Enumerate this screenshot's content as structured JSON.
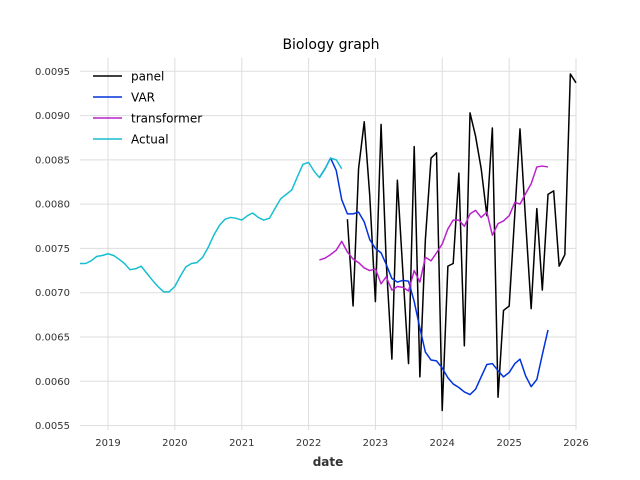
{
  "chart_data": {
    "type": "line",
    "title": "Biology graph",
    "xlabel": "date",
    "ylabel": "",
    "xlim": [
      "2018-08-01",
      "2026-01-01"
    ],
    "ylim": [
      0.00545,
      0.00965
    ],
    "x_ticks": [
      "2019",
      "2020",
      "2021",
      "2022",
      "2023",
      "2024",
      "2025",
      "2026"
    ],
    "y_ticks": [
      "0.0055",
      "0.0060",
      "0.0065",
      "0.0070",
      "0.0075",
      "0.0080",
      "0.0085",
      "0.0090",
      "0.0095"
    ],
    "grid": true,
    "legend_position": "top-left",
    "series": [
      {
        "name": "panel",
        "color": "#000000",
        "points": [
          [
            "2022-08-01",
            0.00783
          ],
          [
            "2022-09-01",
            0.00685
          ],
          [
            "2022-10-01",
            0.0084
          ],
          [
            "2022-11-01",
            0.00893
          ],
          [
            "2022-12-01",
            0.0081
          ],
          [
            "2023-01-01",
            0.0069
          ],
          [
            "2023-02-01",
            0.0089
          ],
          [
            "2023-03-01",
            0.00735
          ],
          [
            "2023-04-01",
            0.00625
          ],
          [
            "2023-05-01",
            0.00827
          ],
          [
            "2023-06-01",
            0.0072
          ],
          [
            "2023-07-01",
            0.0062
          ],
          [
            "2023-08-01",
            0.00865
          ],
          [
            "2023-09-01",
            0.00605
          ],
          [
            "2023-10-01",
            0.0076
          ],
          [
            "2023-11-01",
            0.00852
          ],
          [
            "2023-12-01",
            0.00858
          ],
          [
            "2024-01-01",
            0.00567
          ],
          [
            "2024-02-01",
            0.0073
          ],
          [
            "2024-03-01",
            0.00733
          ],
          [
            "2024-04-01",
            0.00835
          ],
          [
            "2024-05-01",
            0.0064
          ],
          [
            "2024-06-01",
            0.00903
          ],
          [
            "2024-07-01",
            0.00877
          ],
          [
            "2024-08-01",
            0.0084
          ],
          [
            "2024-09-01",
            0.00787
          ],
          [
            "2024-10-01",
            0.00886
          ],
          [
            "2024-11-01",
            0.00582
          ],
          [
            "2024-12-01",
            0.0068
          ],
          [
            "2025-01-01",
            0.00685
          ],
          [
            "2025-02-01",
            0.0079
          ],
          [
            "2025-03-01",
            0.00885
          ],
          [
            "2025-04-01",
            0.0078
          ],
          [
            "2025-05-01",
            0.00682
          ],
          [
            "2025-06-01",
            0.00795
          ],
          [
            "2025-07-01",
            0.00703
          ],
          [
            "2025-08-01",
            0.00811
          ],
          [
            "2025-09-01",
            0.00815
          ],
          [
            "2025-10-01",
            0.0073
          ],
          [
            "2025-11-01",
            0.00743
          ],
          [
            "2025-12-01",
            0.00947
          ],
          [
            "2026-01-01",
            0.00937
          ]
        ]
      },
      {
        "name": "VAR",
        "color": "#0033dd",
        "points": [
          [
            "2022-03-01",
            0.0083
          ],
          [
            "2022-04-01",
            0.0084
          ],
          [
            "2022-05-01",
            0.00852
          ],
          [
            "2022-06-01",
            0.00838
          ],
          [
            "2022-07-01",
            0.00805
          ],
          [
            "2022-08-01",
            0.00789
          ],
          [
            "2022-09-01",
            0.00789
          ],
          [
            "2022-10-01",
            0.00791
          ],
          [
            "2022-11-01",
            0.0078
          ],
          [
            "2022-12-01",
            0.0076
          ],
          [
            "2023-01-01",
            0.0075
          ],
          [
            "2023-02-01",
            0.00745
          ],
          [
            "2023-03-01",
            0.00732
          ],
          [
            "2023-04-01",
            0.00716
          ],
          [
            "2023-05-01",
            0.00712
          ],
          [
            "2023-06-01",
            0.00714
          ],
          [
            "2023-07-01",
            0.00713
          ],
          [
            "2023-08-01",
            0.0069
          ],
          [
            "2023-09-01",
            0.0066
          ],
          [
            "2023-10-01",
            0.00633
          ],
          [
            "2023-11-01",
            0.00624
          ],
          [
            "2023-12-01",
            0.00623
          ],
          [
            "2024-01-01",
            0.00615
          ],
          [
            "2024-02-01",
            0.00604
          ],
          [
            "2024-03-01",
            0.00597
          ],
          [
            "2024-04-01",
            0.00593
          ],
          [
            "2024-05-01",
            0.00588
          ],
          [
            "2024-06-01",
            0.00585
          ],
          [
            "2024-07-01",
            0.00591
          ],
          [
            "2024-08-01",
            0.00605
          ],
          [
            "2024-09-01",
            0.00619
          ],
          [
            "2024-10-01",
            0.0062
          ],
          [
            "2024-11-01",
            0.00612
          ],
          [
            "2024-12-01",
            0.00605
          ],
          [
            "2025-01-01",
            0.0061
          ],
          [
            "2025-02-01",
            0.0062
          ],
          [
            "2025-03-01",
            0.00625
          ],
          [
            "2025-04-01",
            0.00606
          ],
          [
            "2025-05-01",
            0.00594
          ],
          [
            "2025-06-01",
            0.00602
          ],
          [
            "2025-07-01",
            0.0063
          ],
          [
            "2025-08-01",
            0.00658
          ]
        ]
      },
      {
        "name": "transformer",
        "color": "#bb22cc",
        "points": [
          [
            "2022-03-01",
            0.00737
          ],
          [
            "2022-04-01",
            0.00739
          ],
          [
            "2022-05-01",
            0.00743
          ],
          [
            "2022-06-01",
            0.00748
          ],
          [
            "2022-07-01",
            0.00758
          ],
          [
            "2022-08-01",
            0.00746
          ],
          [
            "2022-09-01",
            0.00738
          ],
          [
            "2022-10-01",
            0.00734
          ],
          [
            "2022-11-01",
            0.00728
          ],
          [
            "2022-12-01",
            0.00725
          ],
          [
            "2023-01-01",
            0.00727
          ],
          [
            "2023-02-01",
            0.0071
          ],
          [
            "2023-03-01",
            0.00718
          ],
          [
            "2023-04-01",
            0.00703
          ],
          [
            "2023-05-01",
            0.00707
          ],
          [
            "2023-06-01",
            0.00706
          ],
          [
            "2023-07-01",
            0.00702
          ],
          [
            "2023-08-01",
            0.00725
          ],
          [
            "2023-09-01",
            0.00712
          ],
          [
            "2023-10-01",
            0.0074
          ],
          [
            "2023-11-01",
            0.00736
          ],
          [
            "2023-12-01",
            0.00745
          ],
          [
            "2024-01-01",
            0.00755
          ],
          [
            "2024-02-01",
            0.00772
          ],
          [
            "2024-03-01",
            0.00782
          ],
          [
            "2024-04-01",
            0.00782
          ],
          [
            "2024-05-01",
            0.00775
          ],
          [
            "2024-06-01",
            0.00789
          ],
          [
            "2024-07-01",
            0.00793
          ],
          [
            "2024-08-01",
            0.00785
          ],
          [
            "2024-09-01",
            0.00791
          ],
          [
            "2024-10-01",
            0.00765
          ],
          [
            "2024-11-01",
            0.00778
          ],
          [
            "2024-12-01",
            0.00781
          ],
          [
            "2025-01-01",
            0.00787
          ],
          [
            "2025-02-01",
            0.00802
          ],
          [
            "2025-03-01",
            0.008
          ],
          [
            "2025-04-01",
            0.00812
          ],
          [
            "2025-05-01",
            0.00823
          ],
          [
            "2025-06-01",
            0.00842
          ],
          [
            "2025-07-01",
            0.00843
          ],
          [
            "2025-08-01",
            0.00842
          ]
        ]
      },
      {
        "name": "Actual",
        "color": "#17becf",
        "points": [
          [
            "2018-08-01",
            0.00733
          ],
          [
            "2018-09-01",
            0.00733
          ],
          [
            "2018-10-01",
            0.00736
          ],
          [
            "2018-11-01",
            0.00741
          ],
          [
            "2018-12-01",
            0.00742
          ],
          [
            "2019-01-01",
            0.00744
          ],
          [
            "2019-02-01",
            0.00742
          ],
          [
            "2019-03-01",
            0.00738
          ],
          [
            "2019-04-01",
            0.00733
          ],
          [
            "2019-05-01",
            0.00726
          ],
          [
            "2019-06-01",
            0.00727
          ],
          [
            "2019-07-01",
            0.0073
          ],
          [
            "2019-08-01",
            0.00722
          ],
          [
            "2019-09-01",
            0.00714
          ],
          [
            "2019-10-01",
            0.00707
          ],
          [
            "2019-11-01",
            0.00701
          ],
          [
            "2019-12-01",
            0.00701
          ],
          [
            "2020-01-01",
            0.00707
          ],
          [
            "2020-02-01",
            0.00719
          ],
          [
            "2020-03-01",
            0.00729
          ],
          [
            "2020-04-01",
            0.00733
          ],
          [
            "2020-05-01",
            0.00734
          ],
          [
            "2020-06-01",
            0.0074
          ],
          [
            "2020-07-01",
            0.00751
          ],
          [
            "2020-08-01",
            0.00765
          ],
          [
            "2020-09-01",
            0.00776
          ],
          [
            "2020-10-01",
            0.00783
          ],
          [
            "2020-11-01",
            0.00785
          ],
          [
            "2020-12-01",
            0.00784
          ],
          [
            "2021-01-01",
            0.00782
          ],
          [
            "2021-02-01",
            0.00787
          ],
          [
            "2021-03-01",
            0.0079
          ],
          [
            "2021-04-01",
            0.00785
          ],
          [
            "2021-05-01",
            0.00782
          ],
          [
            "2021-06-01",
            0.00784
          ],
          [
            "2021-07-01",
            0.00795
          ],
          [
            "2021-08-01",
            0.00806
          ],
          [
            "2021-09-01",
            0.00811
          ],
          [
            "2021-10-01",
            0.00816
          ],
          [
            "2021-11-01",
            0.00831
          ],
          [
            "2021-12-01",
            0.00845
          ],
          [
            "2022-01-01",
            0.00847
          ],
          [
            "2022-02-01",
            0.00837
          ],
          [
            "2022-03-01",
            0.0083
          ],
          [
            "2022-04-01",
            0.0084
          ],
          [
            "2022-05-01",
            0.00852
          ],
          [
            "2022-06-01",
            0.0085
          ],
          [
            "2022-07-01",
            0.0084
          ]
        ]
      }
    ]
  }
}
